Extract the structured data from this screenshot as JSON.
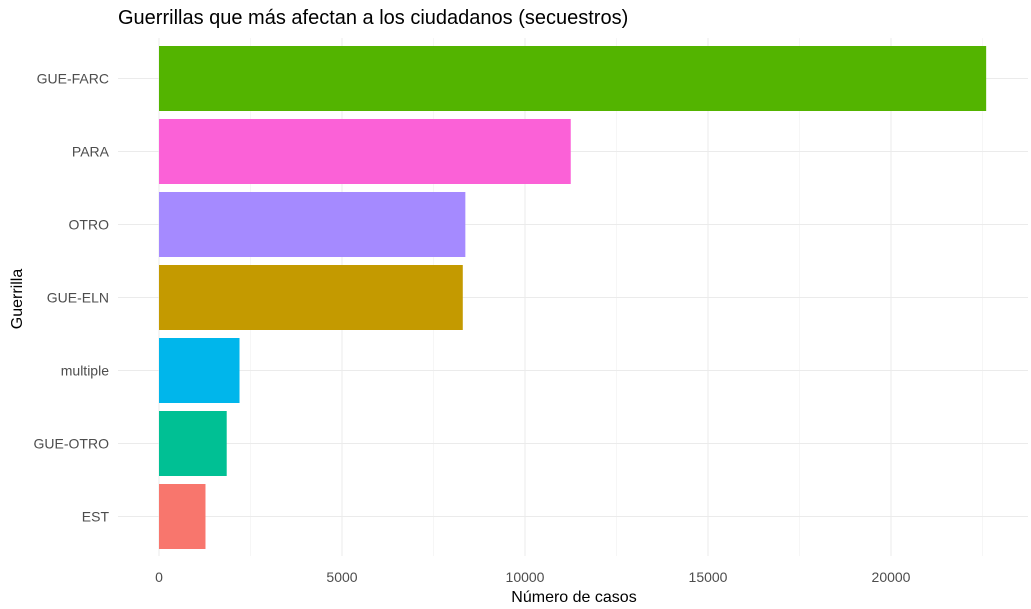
{
  "chart_data": {
    "type": "bar",
    "orientation": "horizontal",
    "title": "Guerrillas que más afectan a los ciudadanos (secuestros)",
    "xlabel": "Número de casos",
    "ylabel": "Guerrilla",
    "xlim": [
      0,
      23000
    ],
    "xticks": [
      0,
      5000,
      10000,
      15000,
      20000
    ],
    "xtick_labels": [
      "0",
      "5000",
      "10000",
      "15000",
      "20000"
    ],
    "grid": true,
    "legend": "none",
    "categories": [
      "GUE-FARC",
      "PARA",
      "OTRO",
      "GUE-ELN",
      "multiple",
      "GUE-OTRO",
      "EST"
    ],
    "values": [
      22600,
      11250,
      8370,
      8300,
      2200,
      1850,
      1270
    ],
    "colors": [
      "#53B400",
      "#FB61D7",
      "#A58AFF",
      "#C49A00",
      "#00B6EB",
      "#00C094",
      "#F8766D"
    ]
  }
}
